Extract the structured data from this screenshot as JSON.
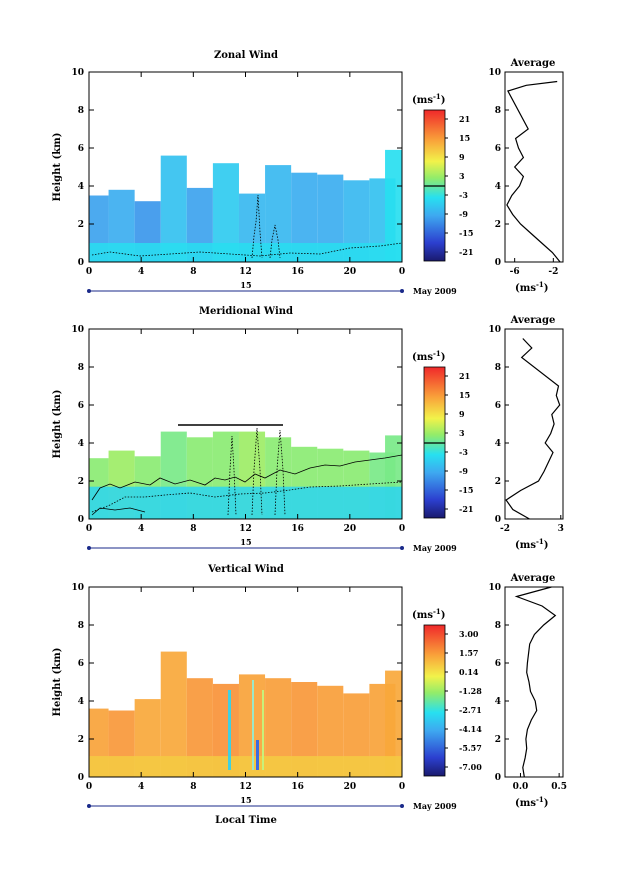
{
  "chart_data": [
    {
      "type": "heatmap",
      "title": "Zonal Wind",
      "xlabel": "",
      "ylabel": "Height (km)",
      "xlim": [
        0,
        24
      ],
      "ylim": [
        0,
        10
      ],
      "xticks": [
        "0",
        "4",
        "8",
        "12",
        "16",
        "20",
        "0"
      ],
      "yticks": [
        "0",
        "2",
        "4",
        "6",
        "8",
        "10"
      ],
      "day_label": "15",
      "date_label": "May 2009",
      "colorbar": {
        "unit_label": "(ms",
        "unit_exp": "-1",
        "unit_close": ")",
        "ticks": [
          "21",
          "15",
          "9",
          "3",
          "-3",
          "-9",
          "-15",
          "-21"
        ],
        "range": [
          -24,
          24
        ]
      },
      "field": {
        "columns": [
          {
            "t": 0.5,
            "top": 3.5,
            "value": -10
          },
          {
            "t": 2.5,
            "top": 3.8,
            "value": -9
          },
          {
            "t": 4.5,
            "top": 3.2,
            "value": -11
          },
          {
            "t": 6.5,
            "top": 5.6,
            "value": -7
          },
          {
            "t": 8.5,
            "top": 3.9,
            "value": -10
          },
          {
            "t": 10.5,
            "top": 5.2,
            "value": -6
          },
          {
            "t": 12.5,
            "top": 3.6,
            "value": -8
          },
          {
            "t": 14.5,
            "top": 5.1,
            "value": -8
          },
          {
            "t": 16.5,
            "top": 4.7,
            "value": -9
          },
          {
            "t": 18.5,
            "top": 4.6,
            "value": -9
          },
          {
            "t": 20.5,
            "top": 4.3,
            "value": -8
          },
          {
            "t": 22.5,
            "top": 4.4,
            "value": -7
          },
          {
            "t": 23.7,
            "top": 5.9,
            "value": -4
          }
        ],
        "low_layer": {
          "top": 1.0,
          "value": -4
        }
      },
      "profile": {
        "title": "Average",
        "xlim": [
          -7,
          -1
        ],
        "xticks": [
          "-6",
          "-2"
        ],
        "xlabel": "(ms",
        "xlabel_exp": "-1",
        "heights": [
          0.0,
          0.5,
          1.0,
          1.5,
          2.0,
          2.5,
          3.0,
          3.5,
          4.0,
          4.5,
          5.0,
          5.5,
          6.0,
          6.5,
          7.0,
          9.0,
          9.3,
          9.5
        ],
        "values": [
          -1.3,
          -2.1,
          -3.2,
          -4.3,
          -5.4,
          -6.2,
          -6.8,
          -6.3,
          -5.5,
          -5.1,
          -6.0,
          -5.1,
          -5.6,
          -5.9,
          -4.6,
          -6.7,
          -4.8,
          -1.6
        ]
      }
    },
    {
      "type": "heatmap",
      "title": "Meridional Wind",
      "xlabel": "",
      "ylabel": "Height (km)",
      "xlim": [
        0,
        24
      ],
      "ylim": [
        0,
        10
      ],
      "xticks": [
        "0",
        "4",
        "8",
        "12",
        "16",
        "20",
        "0"
      ],
      "yticks": [
        "0",
        "2",
        "4",
        "6",
        "8",
        "10"
      ],
      "day_label": "15",
      "date_label": "May 2009",
      "colorbar": {
        "unit_label": "(ms",
        "unit_exp": "-1",
        "unit_close": ")",
        "ticks": [
          "21",
          "15",
          "9",
          "3",
          "-3",
          "-9",
          "-15",
          "-21"
        ],
        "range": [
          -24,
          24
        ]
      },
      "field": {
        "columns": [
          {
            "t": 0.5,
            "top": 3.2,
            "value": 2
          },
          {
            "t": 2.5,
            "top": 3.6,
            "value": 3
          },
          {
            "t": 4.5,
            "top": 3.3,
            "value": 2
          },
          {
            "t": 6.5,
            "top": 4.6,
            "value": 1
          },
          {
            "t": 8.5,
            "top": 4.3,
            "value": 2
          },
          {
            "t": 10.5,
            "top": 4.6,
            "value": 2
          },
          {
            "t": 12.5,
            "top": 4.6,
            "value": 3
          },
          {
            "t": 14.5,
            "top": 4.3,
            "value": 2
          },
          {
            "t": 16.5,
            "top": 3.8,
            "value": 2
          },
          {
            "t": 18.5,
            "top": 3.7,
            "value": 2
          },
          {
            "t": 20.5,
            "top": 3.6,
            "value": 2
          },
          {
            "t": 22.5,
            "top": 3.5,
            "value": 1
          },
          {
            "t": 23.7,
            "top": 4.4,
            "value": 1
          }
        ],
        "low_layer": {
          "top": 1.7,
          "value": -5
        }
      },
      "profile": {
        "title": "Average",
        "xlim": [
          -2,
          3.2
        ],
        "xticks": [
          "-2",
          "3"
        ],
        "xlabel": "(ms",
        "xlabel_exp": "-1",
        "heights": [
          0.0,
          0.5,
          1.0,
          1.5,
          2.0,
          2.5,
          3.0,
          3.5,
          4.0,
          4.5,
          5.0,
          5.5,
          6.0,
          6.5,
          7.0,
          8.5,
          9.0,
          9.5
        ],
        "values": [
          0.2,
          -1.3,
          -1.9,
          -0.6,
          1.0,
          1.5,
          1.9,
          2.3,
          1.6,
          2.1,
          2.4,
          2.2,
          2.9,
          2.6,
          2.8,
          -0.5,
          0.4,
          -0.4
        ]
      }
    },
    {
      "type": "heatmap",
      "title": "Vertical Wind",
      "xlabel": "Local Time",
      "ylabel": "Height (km)",
      "xlim": [
        0,
        24
      ],
      "ylim": [
        0,
        10
      ],
      "xticks": [
        "0",
        "4",
        "8",
        "12",
        "16",
        "20",
        "0"
      ],
      "yticks": [
        "0",
        "2",
        "4",
        "6",
        "8",
        "10"
      ],
      "day_label": "15",
      "date_label": "May 2009",
      "colorbar": {
        "unit_label": "(ms",
        "unit_exp": "-1",
        "unit_close": ")",
        "ticks": [
          "3.00",
          "1.57",
          "0.14",
          "-1.28",
          "-2.71",
          "-4.14",
          "-5.57",
          "-7.00"
        ],
        "range": [
          -7.7,
          3.7
        ]
      },
      "field": {
        "columns": [
          {
            "t": 0.5,
            "top": 3.6,
            "value": 1.4
          },
          {
            "t": 2.5,
            "top": 3.5,
            "value": 1.6
          },
          {
            "t": 4.5,
            "top": 4.1,
            "value": 1.3
          },
          {
            "t": 6.5,
            "top": 6.6,
            "value": 1.3
          },
          {
            "t": 8.5,
            "top": 5.2,
            "value": 1.6
          },
          {
            "t": 10.5,
            "top": 4.9,
            "value": 1.7
          },
          {
            "t": 12.5,
            "top": 5.4,
            "value": 1.4
          },
          {
            "t": 14.5,
            "top": 5.2,
            "value": 1.5
          },
          {
            "t": 16.5,
            "top": 5.0,
            "value": 1.6
          },
          {
            "t": 18.5,
            "top": 4.8,
            "value": 1.5
          },
          {
            "t": 20.5,
            "top": 4.4,
            "value": 1.5
          },
          {
            "t": 22.5,
            "top": 4.9,
            "value": 1.4
          },
          {
            "t": 23.7,
            "top": 5.6,
            "value": 1.3
          }
        ],
        "low_layer": {
          "top": 1.1,
          "value": 0.6
        }
      },
      "profile": {
        "title": "Average",
        "xlim": [
          -0.2,
          0.55
        ],
        "xticks": [
          "0.0",
          "0.5"
        ],
        "xlabel": "(ms",
        "xlabel_exp": "-1",
        "heights": [
          0.0,
          0.5,
          1.0,
          1.5,
          2.0,
          2.5,
          3.0,
          3.5,
          4.0,
          4.5,
          5.0,
          5.5,
          6.0,
          7.0,
          7.5,
          8.0,
          8.5,
          9.0,
          9.5,
          10.0
        ],
        "values": [
          0.05,
          0.03,
          0.06,
          0.08,
          0.07,
          0.09,
          0.14,
          0.21,
          0.19,
          0.13,
          0.11,
          0.08,
          0.09,
          0.12,
          0.18,
          0.3,
          0.45,
          0.28,
          -0.05,
          0.4
        ]
      }
    }
  ]
}
